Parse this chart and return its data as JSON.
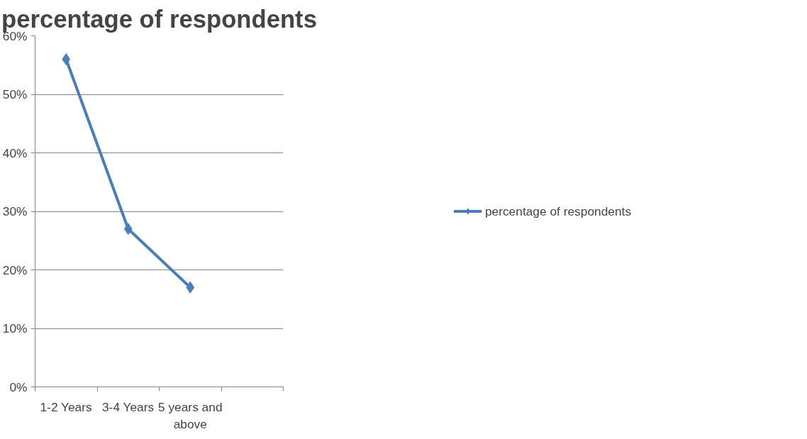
{
  "chart_data": {
    "type": "line",
    "title": "percentage of respondents",
    "categories": [
      "1-2 Years",
      "3-4 Years",
      "5 years and above",
      null
    ],
    "series": [
      {
        "name": "percentage of respondents",
        "color": "#4a7ebb",
        "values": [
          0.56,
          0.27,
          0.17,
          null
        ]
      }
    ],
    "ylim": [
      0,
      0.6
    ],
    "yticks": [
      {
        "value": 0,
        "label": "0%"
      },
      {
        "value": 0.1,
        "label": "10%"
      },
      {
        "value": 0.2,
        "label": "20%"
      },
      {
        "value": 0.3,
        "label": "30%"
      },
      {
        "value": 0.4,
        "label": "40%"
      },
      {
        "value": 0.5,
        "label": "50%"
      },
      {
        "value": 0.6,
        "label": "60%"
      }
    ],
    "grid": "y",
    "legend": "right",
    "marker": "diamond",
    "line_style": "solid"
  }
}
